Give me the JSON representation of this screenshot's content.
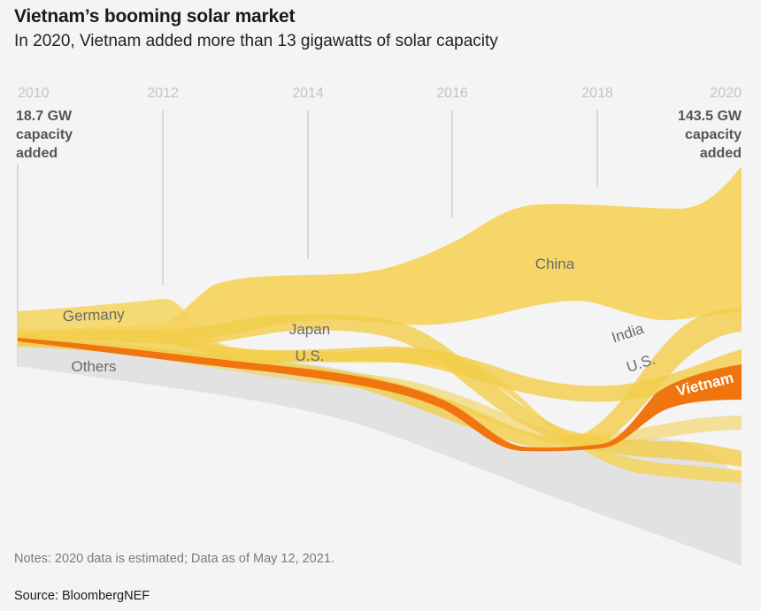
{
  "header": {
    "title": "Vietnam’s booming solar market",
    "subtitle": "In 2020, Vietnam added more than 13 gigawatts of solar capacity"
  },
  "chart_data": {
    "type": "area",
    "x_ticks": [
      "2010",
      "2012",
      "2014",
      "2016",
      "2018",
      "2020"
    ],
    "x_range": [
      2010,
      2020
    ],
    "start_annotation": [
      "18.7 GW",
      "capacity",
      "added"
    ],
    "end_annotation": [
      "143.5 GW",
      "capacity",
      "added"
    ],
    "total_capacity_added_gw": {
      "2010": 18.7,
      "2020": 143.5
    },
    "series": [
      {
        "name": "Others",
        "color": "#e2e2e2"
      },
      {
        "name": "Germany",
        "color": "#f5d66a"
      },
      {
        "name": "China",
        "color": "#f5d66a"
      },
      {
        "name": "Japan",
        "color": "#f5d66a"
      },
      {
        "name": "U.S.",
        "color": "#f5d66a"
      },
      {
        "name": "India",
        "color": "#f5d66a"
      },
      {
        "name": "Vietnam",
        "color": "#f0750f"
      }
    ],
    "chart_labels": {
      "germany": "Germany",
      "others": "Others",
      "japan": "Japan",
      "us_left": "U.S.",
      "china": "China",
      "india": "India",
      "us_right": "U.S.",
      "vietnam": "Vietnam"
    },
    "grid": false
  },
  "footer": {
    "notes": "Notes: 2020 data is estimated; Data as of May 12, 2021.",
    "source": "Source: BloombergNEF"
  }
}
